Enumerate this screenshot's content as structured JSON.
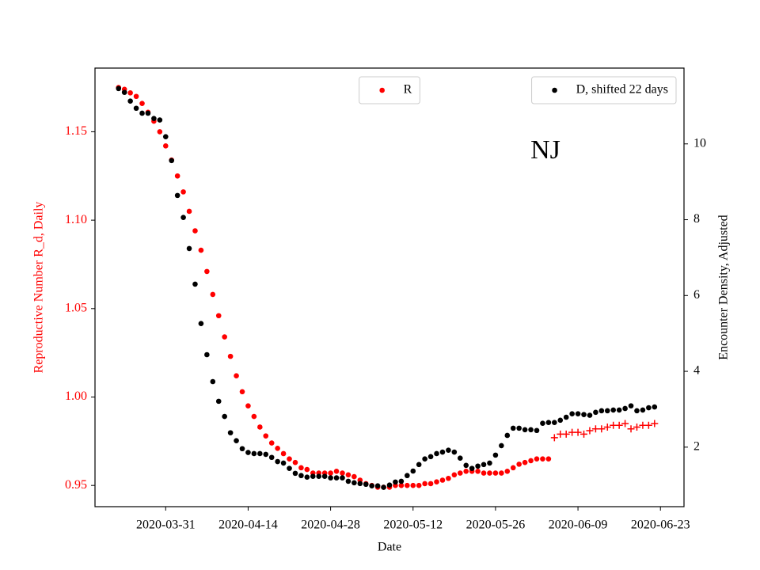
{
  "chart_data": {
    "type": "scatter",
    "xlabel": "Date",
    "ylabel": "Reproductive Number R_d, Daily",
    "y2label": "Encounter Density, Adjusted",
    "ylabel_color": "#ff0000",
    "annotations": [
      {
        "text": "NJ"
      }
    ],
    "x": [
      "2020-03-23",
      "2020-03-24",
      "2020-03-25",
      "2020-03-26",
      "2020-03-27",
      "2020-03-28",
      "2020-03-29",
      "2020-03-30",
      "2020-03-31",
      "2020-04-01",
      "2020-04-02",
      "2020-04-03",
      "2020-04-04",
      "2020-04-05",
      "2020-04-06",
      "2020-04-07",
      "2020-04-08",
      "2020-04-09",
      "2020-04-10",
      "2020-04-11",
      "2020-04-12",
      "2020-04-13",
      "2020-04-14",
      "2020-04-15",
      "2020-04-16",
      "2020-04-17",
      "2020-04-18",
      "2020-04-19",
      "2020-04-20",
      "2020-04-21",
      "2020-04-22",
      "2020-04-23",
      "2020-04-24",
      "2020-04-25",
      "2020-04-26",
      "2020-04-27",
      "2020-04-28",
      "2020-04-29",
      "2020-04-30",
      "2020-05-01",
      "2020-05-02",
      "2020-05-03",
      "2020-05-04",
      "2020-05-05",
      "2020-05-06",
      "2020-05-07",
      "2020-05-08",
      "2020-05-09",
      "2020-05-10",
      "2020-05-11",
      "2020-05-12",
      "2020-05-13",
      "2020-05-14",
      "2020-05-15",
      "2020-05-16",
      "2020-05-17",
      "2020-05-18",
      "2020-05-19",
      "2020-05-20",
      "2020-05-21",
      "2020-05-22",
      "2020-05-23",
      "2020-05-24",
      "2020-05-25",
      "2020-05-26",
      "2020-05-27",
      "2020-05-28",
      "2020-05-29",
      "2020-05-30",
      "2020-05-31",
      "2020-06-01",
      "2020-06-02",
      "2020-06-03",
      "2020-06-04",
      "2020-06-05",
      "2020-06-06",
      "2020-06-07",
      "2020-06-08",
      "2020-06-09",
      "2020-06-10",
      "2020-06-11",
      "2020-06-12",
      "2020-06-13",
      "2020-06-14",
      "2020-06-15",
      "2020-06-16",
      "2020-06-17",
      "2020-06-18",
      "2020-06-19",
      "2020-06-20",
      "2020-06-21",
      "2020-06-22"
    ],
    "xlim": [
      "2020-03-19",
      "2020-06-27"
    ],
    "xticks": [
      "2020-03-31",
      "2020-04-14",
      "2020-04-28",
      "2020-05-12",
      "2020-05-26",
      "2020-06-09",
      "2020-06-23"
    ],
    "ylim": [
      0.938,
      1.186
    ],
    "yticks": [
      0.95,
      {
        "value": 1,
        "label": "1.00"
      },
      1.05,
      {
        "value": 1.1,
        "label": "1.10"
      },
      1.15
    ],
    "ytick_color": "#ff0000",
    "y2lim": [
      0.43,
      12.0
    ],
    "y2ticks": [
      2,
      4,
      6,
      8,
      10
    ],
    "series": [
      {
        "name": "R",
        "color": "#ff0000",
        "marker": "o",
        "legend_loc": "upper center",
        "values": [
          1.175,
          1.174,
          1.172,
          1.17,
          1.166,
          1.161,
          1.156,
          1.15,
          1.142,
          1.134,
          1.125,
          1.116,
          1.105,
          1.094,
          1.083,
          1.071,
          1.058,
          1.046,
          1.034,
          1.023,
          1.012,
          1.003,
          0.995,
          0.989,
          0.983,
          0.978,
          0.974,
          0.971,
          0.968,
          0.965,
          0.963,
          0.96,
          0.959,
          0.957,
          0.957,
          0.957,
          0.957,
          0.958,
          0.957,
          0.956,
          0.955,
          0.953,
          0.951,
          0.95,
          0.949,
          0.949,
          0.949,
          0.95,
          0.95,
          0.95,
          0.95,
          0.95,
          0.951,
          0.951,
          0.952,
          0.953,
          0.954,
          0.956,
          0.957,
          0.958,
          0.958,
          0.958,
          0.957,
          0.957,
          0.957,
          0.957,
          0.958,
          0.96,
          0.962,
          0.963,
          0.964,
          0.965,
          0.965,
          0.965,
          null,
          null,
          null,
          null,
          null,
          null,
          null,
          null,
          null,
          null,
          null,
          null,
          null,
          null,
          null,
          null,
          null,
          null
        ]
      },
      {
        "color": "#ff0000",
        "marker": "+",
        "values": [
          null,
          null,
          null,
          null,
          null,
          null,
          null,
          null,
          null,
          null,
          null,
          null,
          null,
          null,
          null,
          null,
          null,
          null,
          null,
          null,
          null,
          null,
          null,
          null,
          null,
          null,
          null,
          null,
          null,
          null,
          null,
          null,
          null,
          null,
          null,
          null,
          null,
          null,
          null,
          null,
          null,
          null,
          null,
          null,
          null,
          null,
          null,
          null,
          null,
          null,
          null,
          null,
          null,
          null,
          null,
          null,
          null,
          null,
          null,
          null,
          null,
          null,
          null,
          null,
          null,
          null,
          null,
          null,
          null,
          null,
          null,
          null,
          null,
          null,
          0.977,
          0.979,
          0.979,
          0.98,
          0.98,
          0.979,
          0.981,
          0.982,
          0.982,
          0.983,
          0.984,
          0.984,
          0.985,
          0.982,
          0.983,
          0.984,
          0.984,
          0.985
        ]
      },
      {
        "name": "D, shifted 22 days",
        "color": "#000000",
        "marker": "o",
        "axis": "y2",
        "legend_loc": "upper right",
        "values": [
          11.46,
          11.36,
          11.13,
          10.94,
          10.81,
          10.81,
          10.67,
          10.63,
          10.19,
          9.56,
          8.64,
          8.06,
          7.24,
          6.3,
          5.26,
          4.44,
          3.73,
          3.21,
          2.81,
          2.38,
          2.17,
          1.96,
          1.86,
          1.83,
          1.83,
          1.81,
          1.73,
          1.62,
          1.58,
          1.44,
          1.31,
          1.25,
          1.21,
          1.23,
          1.23,
          1.23,
          1.19,
          1.19,
          1.19,
          1.1,
          1.06,
          1.04,
          1.02,
          0.98,
          0.98,
          0.94,
          1.0,
          1.08,
          1.1,
          1.25,
          1.37,
          1.54,
          1.69,
          1.75,
          1.83,
          1.87,
          1.92,
          1.87,
          1.71,
          1.52,
          1.44,
          1.5,
          1.54,
          1.58,
          1.79,
          2.04,
          2.31,
          2.5,
          2.5,
          2.46,
          2.46,
          2.44,
          2.63,
          2.65,
          2.65,
          2.71,
          2.79,
          2.88,
          2.88,
          2.86,
          2.84,
          2.92,
          2.96,
          2.96,
          2.98,
          2.98,
          3.02,
          3.09,
          2.96,
          2.98,
          3.04,
          3.06
        ]
      }
    ]
  }
}
